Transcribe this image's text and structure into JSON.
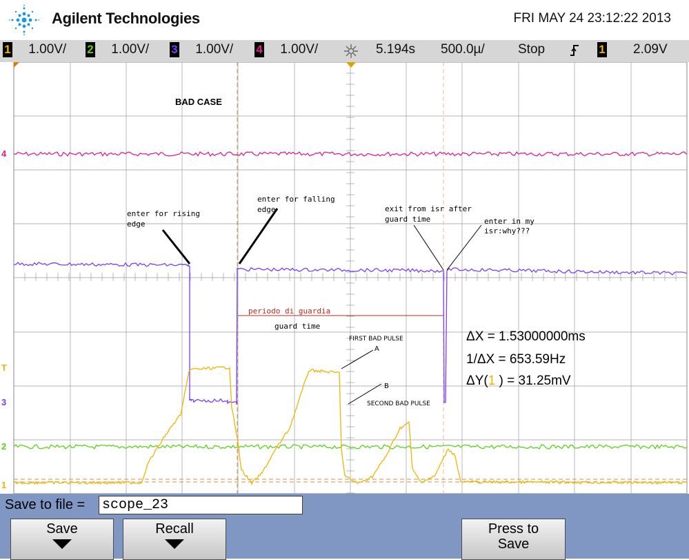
{
  "header": {
    "brand": "Agilent Technologies",
    "datetime": "FRI MAY 24 23:12:22 2013"
  },
  "status_bar": {
    "channels": [
      {
        "num": "1",
        "scale": "1.00V/",
        "color": "#f0b400"
      },
      {
        "num": "2",
        "scale": "1.00V/",
        "color": "#5bd11c"
      },
      {
        "num": "3",
        "scale": "1.00V/",
        "color": "#7a3cff"
      },
      {
        "num": "4",
        "scale": "1.00V/",
        "color": "#e0208e"
      }
    ],
    "delay": "5.194s",
    "timebase": "500.0µ/",
    "run_state": "Stop",
    "trigger_channel": "1",
    "trigger_level": "2.09V"
  },
  "screen": {
    "title": "BAD CASE",
    "annotations": {
      "rising": [
        "enter  for rising",
        "edge"
      ],
      "falling": [
        "enter  for falling",
        "edge"
      ],
      "exit": [
        "exit from isr after",
        "guard time"
      ],
      "enter_isr": [
        "enter  in my",
        "isr:why???"
      ],
      "periodo": "periodo  di  guardia",
      "guard": "guard  time",
      "first_bad": "FIRST BAD PULSE",
      "a": "A",
      "b": "B",
      "second_bad": "SECOND BAD PULSE"
    },
    "channel_labels": {
      "ch4": "4",
      "trig": "T",
      "ch3": "3",
      "ch2": "2",
      "ch1": "1"
    },
    "measurements": {
      "dx": "ΔX = 1.53000000ms",
      "inv_dx": "1/ΔX = 653.59Hz",
      "dy_prefix": "ΔY(",
      "dy_ch": "1",
      "dy_suffix": " ) = 31.25mV"
    }
  },
  "softkeys": {
    "save_to_file_label": "Save to file =",
    "filename": "scope_23",
    "save": "Save",
    "recall": "Recall",
    "press_to": "Press to",
    "press_save": "Save"
  },
  "colors": {
    "ch1": "#f0b400",
    "ch2": "#5bd11c",
    "ch3": "#7a3cff",
    "ch4": "#e0208e",
    "grid": "#9a9a9a",
    "cursor": "#d09040",
    "annotation_red": "#c0281e",
    "softkey_bar": "#7f97c2"
  }
}
